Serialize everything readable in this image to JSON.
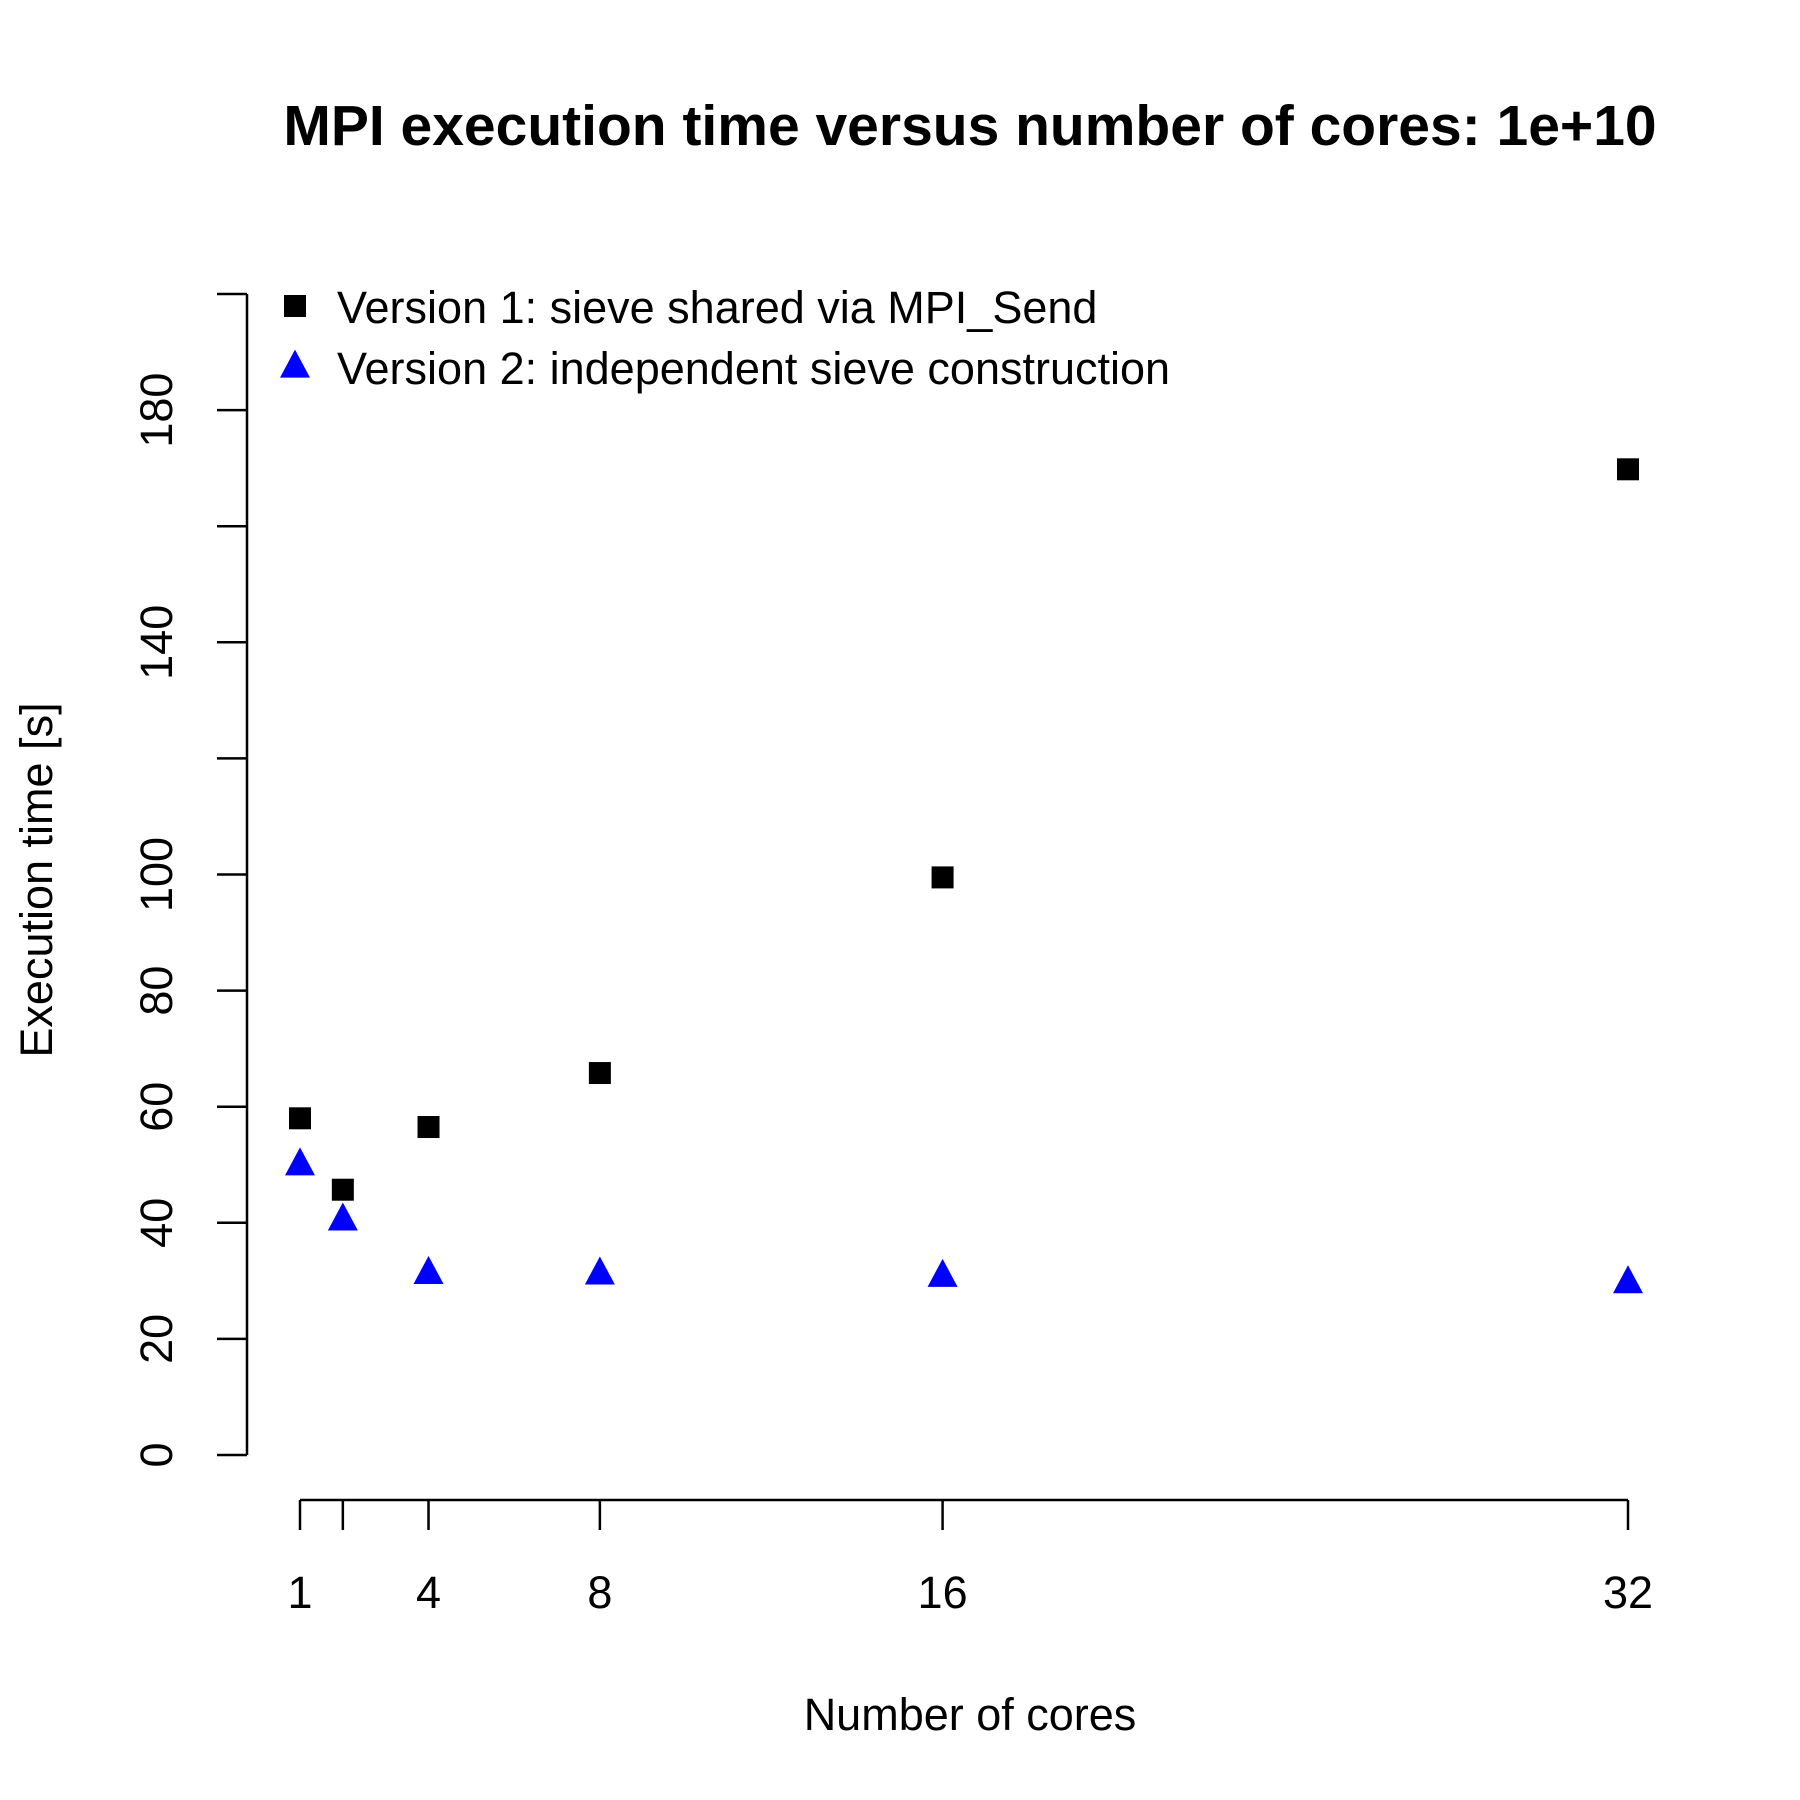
{
  "chart_data": {
    "type": "scatter",
    "title": "MPI execution time versus number of cores: 1e+10",
    "xlabel": "Number of cores",
    "ylabel": "Execution time [s]",
    "xlim": [
      1,
      32
    ],
    "ylim": [
      0,
      200
    ],
    "x_ticks": [
      1,
      2,
      4,
      8,
      16,
      32
    ],
    "x_tick_labels": [
      "1",
      "",
      "4",
      "8",
      "16",
      "32"
    ],
    "y_ticks": [
      0,
      20,
      40,
      60,
      80,
      100,
      120,
      140,
      160,
      180,
      200
    ],
    "y_tick_labels": [
      "0",
      "20",
      "40",
      "60",
      "80",
      "100",
      "",
      "140",
      "",
      "180",
      ""
    ],
    "legend_position": "top-left",
    "series": [
      {
        "name": "Version 1: sieve shared via MPI_Send",
        "marker": "square",
        "color": "#000000",
        "x": [
          1,
          2,
          4,
          8,
          16,
          32
        ],
        "y": [
          58,
          45.7,
          56.5,
          65.8,
          99.5,
          169.8
        ]
      },
      {
        "name": "Version 2: independent sieve construction",
        "marker": "triangle",
        "color": "#0000ff",
        "x": [
          1,
          2,
          4,
          8,
          16,
          32
        ],
        "y": [
          50,
          40.5,
          31.3,
          31.2,
          30.8,
          29.7
        ]
      }
    ]
  }
}
